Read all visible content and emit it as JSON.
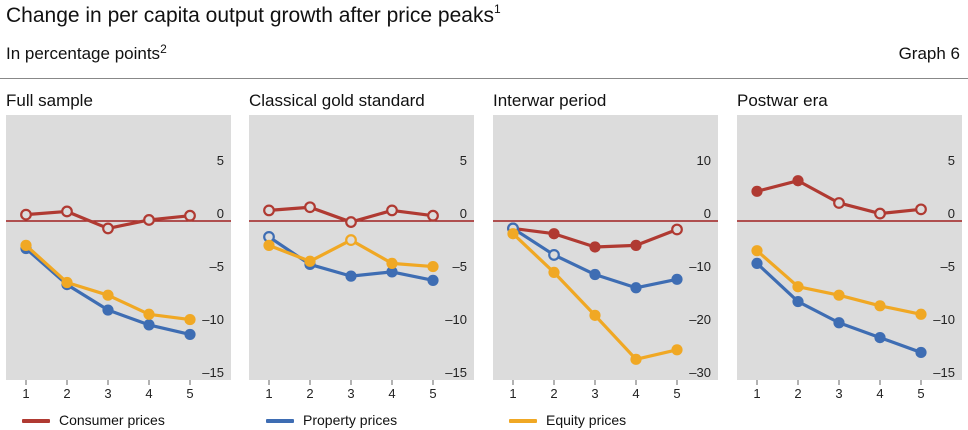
{
  "header": {
    "title": "Change in per capita output growth after price peaks",
    "title_sup": "1",
    "subtitle": "In percentage points",
    "subtitle_sup": "2",
    "graph_no": "Graph 6"
  },
  "colors": {
    "consumer": "#b03a32",
    "property": "#3e6db3",
    "equity": "#f0a824",
    "panel_bg": "#dcdcdc",
    "zero_line": "#a02020"
  },
  "legend": [
    {
      "key": "consumer",
      "label": "Consumer prices"
    },
    {
      "key": "property",
      "label": "Property prices"
    },
    {
      "key": "equity",
      "label": "Equity prices"
    }
  ],
  "chart_data": [
    {
      "type": "line",
      "title": "Full sample",
      "categories": [
        "1",
        "2",
        "3",
        "4",
        "5"
      ],
      "ylim": [
        -15,
        10
      ],
      "yticks": [
        5,
        0,
        -5,
        -10,
        -15
      ],
      "ytick_labels": [
        "5",
        "0",
        "–5",
        "–10",
        "–15"
      ],
      "series": [
        {
          "name": "Consumer prices",
          "key": "consumer",
          "values": [
            0.6,
            0.9,
            -0.7,
            0.1,
            0.5
          ],
          "hollow": [
            true,
            true,
            true,
            true,
            true
          ]
        },
        {
          "name": "Property prices",
          "key": "property",
          "values": [
            -2.6,
            -6.0,
            -8.4,
            -9.8,
            -10.7
          ],
          "hollow": [
            false,
            false,
            false,
            false,
            false
          ]
        },
        {
          "name": "Equity prices",
          "key": "equity",
          "values": [
            -2.3,
            -5.8,
            -7.0,
            -8.8,
            -9.3
          ],
          "hollow": [
            false,
            false,
            false,
            false,
            false
          ]
        }
      ]
    },
    {
      "type": "line",
      "title": "Classical gold standard",
      "categories": [
        "1",
        "2",
        "3",
        "4",
        "5"
      ],
      "ylim": [
        -15,
        10
      ],
      "yticks": [
        5,
        0,
        -5,
        -10,
        -15
      ],
      "ytick_labels": [
        "5",
        "0",
        "–5",
        "–10",
        "–15"
      ],
      "series": [
        {
          "name": "Consumer prices",
          "key": "consumer",
          "values": [
            1.0,
            1.3,
            -0.1,
            1.0,
            0.5
          ],
          "hollow": [
            true,
            true,
            true,
            true,
            true
          ]
        },
        {
          "name": "Property prices",
          "key": "property",
          "values": [
            -1.5,
            -4.1,
            -5.2,
            -4.8,
            -5.6
          ],
          "hollow": [
            true,
            false,
            false,
            false,
            false
          ]
        },
        {
          "name": "Equity prices",
          "key": "equity",
          "values": [
            -2.3,
            -3.8,
            -1.8,
            -4.0,
            -4.3
          ],
          "hollow": [
            false,
            false,
            true,
            false,
            false
          ]
        }
      ]
    },
    {
      "type": "line",
      "title": "Interwar period",
      "categories": [
        "1",
        "2",
        "3",
        "4",
        "5"
      ],
      "ylim": [
        -30,
        20
      ],
      "yticks": [
        10,
        0,
        -10,
        -20,
        -30
      ],
      "ytick_labels": [
        "10",
        "0",
        "–10",
        "–20",
        "–30"
      ],
      "series": [
        {
          "name": "Consumer prices",
          "key": "consumer",
          "values": [
            -1.4,
            -2.4,
            -4.9,
            -4.6,
            -1.6
          ],
          "hollow": [
            true,
            false,
            false,
            false,
            true
          ]
        },
        {
          "name": "Property prices",
          "key": "property",
          "values": [
            -1.4,
            -6.4,
            -10.1,
            -12.6,
            -11.0
          ],
          "hollow": [
            true,
            true,
            false,
            false,
            false
          ]
        },
        {
          "name": "Equity prices",
          "key": "equity",
          "values": [
            -2.4,
            -9.7,
            -17.8,
            -26.1,
            -24.3
          ],
          "hollow": [
            false,
            false,
            false,
            false,
            false
          ]
        }
      ]
    },
    {
      "type": "line",
      "title": "Postwar era",
      "categories": [
        "1",
        "2",
        "3",
        "4",
        "5"
      ],
      "ylim": [
        -15,
        10
      ],
      "yticks": [
        5,
        0,
        -5,
        -10,
        -15
      ],
      "ytick_labels": [
        "5",
        "0",
        "–5",
        "–10",
        "–15"
      ],
      "series": [
        {
          "name": "Consumer prices",
          "key": "consumer",
          "values": [
            2.8,
            3.8,
            1.7,
            0.7,
            1.1
          ],
          "hollow": [
            false,
            false,
            true,
            true,
            true
          ]
        },
        {
          "name": "Property prices",
          "key": "property",
          "values": [
            -4.0,
            -7.6,
            -9.6,
            -11.0,
            -12.4
          ],
          "hollow": [
            false,
            false,
            false,
            false,
            false
          ]
        },
        {
          "name": "Equity prices",
          "key": "equity",
          "values": [
            -2.8,
            -6.2,
            -7.0,
            -8.0,
            -8.8
          ],
          "hollow": [
            false,
            false,
            false,
            false,
            false
          ]
        }
      ]
    }
  ]
}
